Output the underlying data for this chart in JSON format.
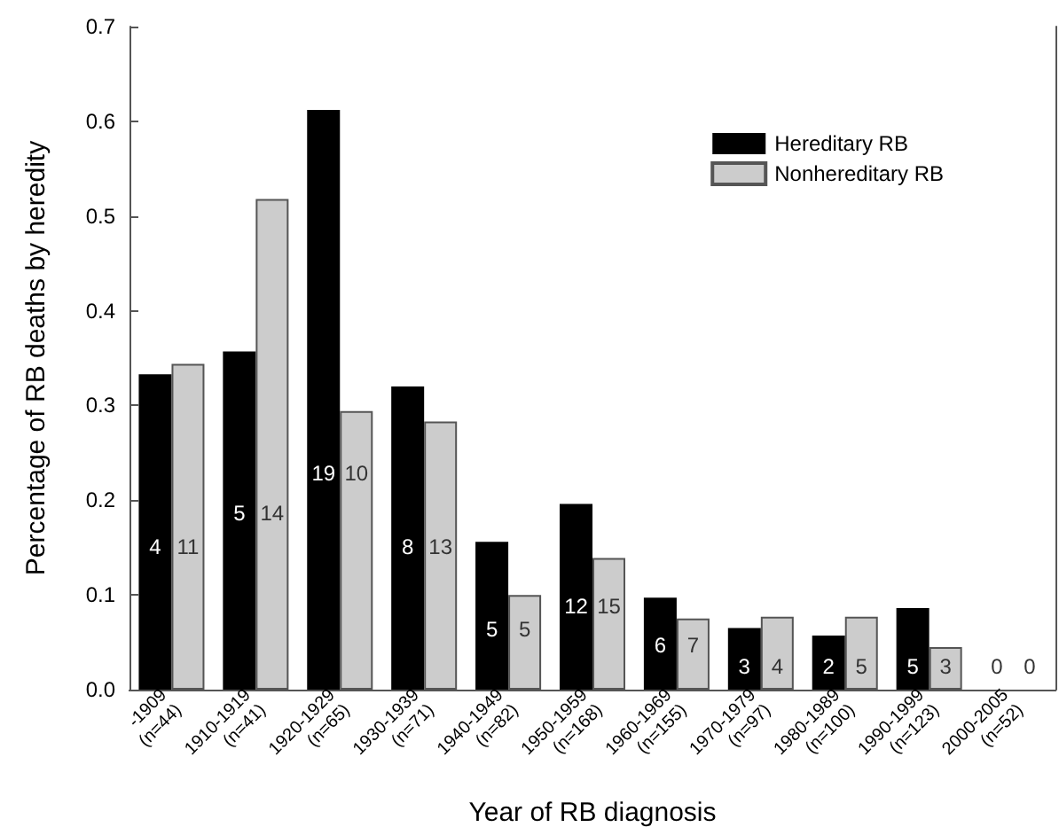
{
  "chart_data": {
    "type": "bar",
    "xlabel": "Year of RB diagnosis",
    "ylabel": "Percentage of RB deaths by heredity",
    "categories": [
      "-1909\n(n=44)",
      "1910-1919\n(n=41)",
      "1920-1929\n(n=65)",
      "1930-1939\n(n=71)",
      "1940-1949\n(n=82)",
      "1950-1959\n(n=168)",
      "1960-1969\n(n=155)",
      "1970-1979\n(n=97)",
      "1980-1989\n(n=100)",
      "1990-1999\n(n=123)",
      "2000-2005\n(n=52)"
    ],
    "series": [
      {
        "name": "Hereditary RB",
        "color": "#000000",
        "values": [
          0.333,
          0.357,
          0.612,
          0.32,
          0.156,
          0.196,
          0.097,
          0.065,
          0.057,
          0.086,
          0
        ]
      },
      {
        "name": "Nonhereditary RB",
        "color": "#cccccc",
        "values": [
          0.344,
          0.518,
          0.294,
          0.283,
          0.1,
          0.139,
          0.075,
          0.077,
          0.077,
          0.045,
          0
        ]
      }
    ],
    "annotations": [
      {
        "text": "4",
        "x": "-1909\n(n=44)",
        "y": 0.151
      },
      {
        "text": "11",
        "x": "-1909\n(n=44)",
        "y": 0.151
      },
      {
        "text": "5",
        "x": "1910-1919\n(n=41)",
        "y": 0.186
      },
      {
        "text": "14",
        "x": "1910-1919\n(n=41)",
        "y": 0.186
      },
      {
        "text": "19",
        "x": "1920-1929\n(n=65)",
        "y": 0.228
      },
      {
        "text": "10",
        "x": "1920-1929\n(n=65)",
        "y": 0.228
      },
      {
        "text": "8",
        "x": "1930-1939\n(n=71)",
        "y": 0.151
      },
      {
        "text": "13",
        "x": "1930-1939\n(n=71)",
        "y": 0.151
      },
      {
        "text": "5",
        "x": "1940-1949\n(n=82)",
        "y": 0.064
      },
      {
        "text": "5",
        "x": "1940-1949\n(n=82)",
        "y": 0.064
      },
      {
        "text": "12",
        "x": "1950-1959\n(n=168)",
        "y": 0.088
      },
      {
        "text": "15",
        "x": "1950-1959\n(n=168)",
        "y": 0.088
      },
      {
        "text": "6",
        "x": "1960-1969\n(n=155)",
        "y": 0.047
      },
      {
        "text": "7",
        "x": "1960-1969\n(n=155)",
        "y": 0.047
      },
      {
        "text": "3",
        "x": "1970-1979\n(n=97)",
        "y": 0.024
      },
      {
        "text": "4",
        "x": "1970-1979\n(n=97)",
        "y": 0.024
      },
      {
        "text": "2",
        "x": "1980-1989\n(n=100)",
        "y": 0.024
      },
      {
        "text": "5",
        "x": "1980-1989\n(n=100)",
        "y": 0.024
      },
      {
        "text": "5",
        "x": "1990-1999\n(n=123)",
        "y": 0.024
      },
      {
        "text": "3",
        "x": "1990-1999\n(n=123)",
        "y": 0.024
      },
      "0",
      "0"
    ],
    "ylim": [
      0,
      0.7
    ],
    "yticks": [
      {
        "value": 0,
        "label": "0.0"
      },
      0.1,
      0.2,
      0.3,
      0.4,
      0.5,
      0.6,
      0.7
    ],
    "grid": false,
    "legend": "top right"
  }
}
